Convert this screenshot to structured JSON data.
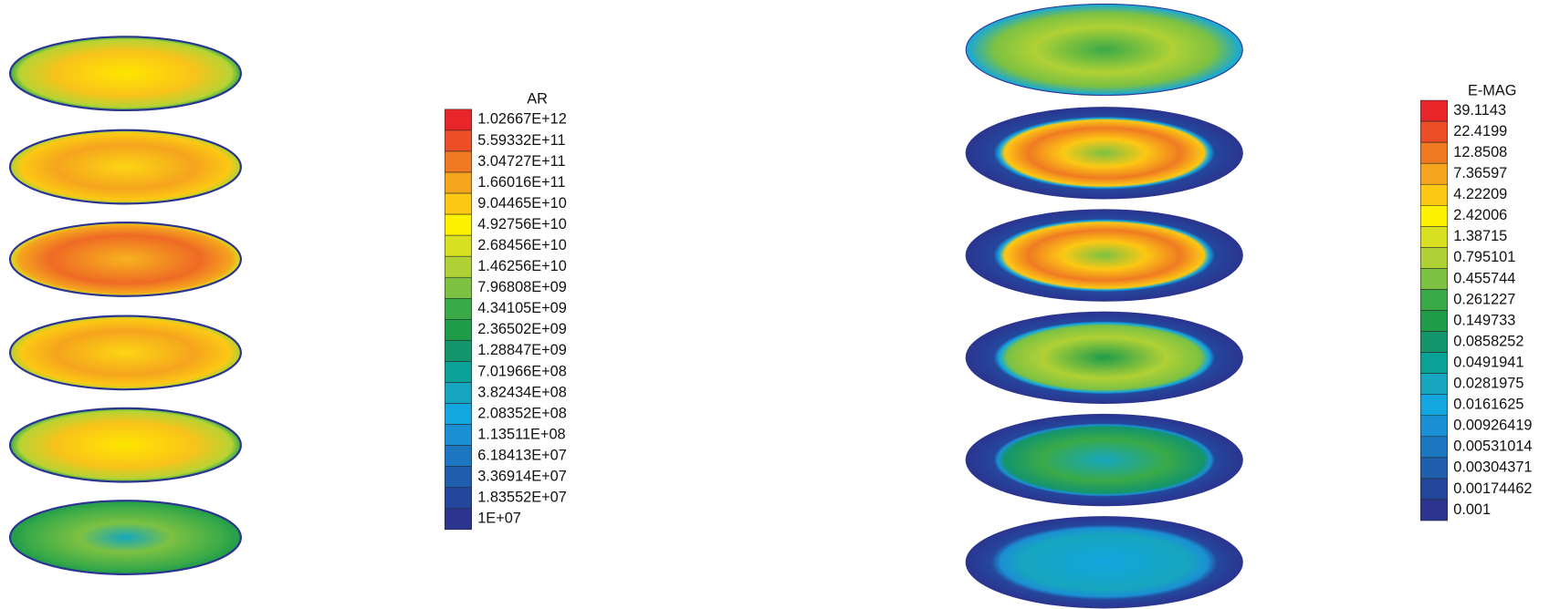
{
  "legends": [
    {
      "title": "AR",
      "labels": [
        "1.02667E+12",
        "5.59332E+11",
        "3.04727E+11",
        "1.66016E+11",
        "9.04465E+10",
        "4.92756E+10",
        "2.68456E+10",
        "1.46256E+10",
        "7.96808E+09",
        "4.34105E+09",
        "2.36502E+09",
        "1.28847E+09",
        "7.01966E+08",
        "3.82434E+08",
        "2.08352E+08",
        "1.13511E+08",
        "6.18413E+07",
        "3.36914E+07",
        "1.83552E+07",
        "1E+07"
      ]
    },
    {
      "title": "E-MAG",
      "labels": [
        "39.1143",
        "22.4199",
        "12.8508",
        "7.36597",
        "4.22209",
        "2.42006",
        "1.38715",
        "0.795101",
        "0.455744",
        "0.261227",
        "0.149733",
        "0.0858252",
        "0.0491941",
        "0.0281975",
        "0.0161625",
        "0.00926419",
        "0.00531014",
        "0.00304371",
        "0.00174462",
        "0.001"
      ]
    }
  ]
}
